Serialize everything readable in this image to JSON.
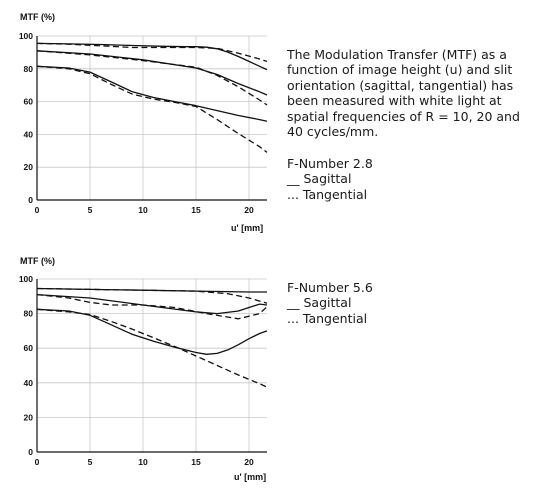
{
  "description": "The Modulation Transfer (MTF) as a function of image height (u) and slit orientation (sagittal, tangential) has been measured with white light at spatial frequencies of R = 10, 20 and 40 cycles/mm.",
  "chart_data": [
    {
      "type": "line",
      "title": "F-Number 2.8",
      "ylabel": "MTF (%)",
      "xlabel": "u' [mm]",
      "xlim": [
        0,
        21.7
      ],
      "ylim": [
        0,
        100
      ],
      "xticks": [
        0,
        5,
        10,
        15,
        20
      ],
      "yticks": [
        0,
        20,
        40,
        60,
        80,
        100
      ],
      "grid": true,
      "legend": [
        "__ Sagittal",
        "... Tangential"
      ],
      "series": [
        {
          "style": "solid",
          "x": [
            0,
            3,
            6,
            9,
            12,
            14,
            15,
            16,
            17,
            18,
            19,
            20,
            21,
            21.7
          ],
          "y": [
            95.5,
            95.2,
            94.8,
            94.2,
            93.7,
            93.5,
            93.5,
            93.2,
            92.2,
            90.2,
            87.5,
            84.5,
            81.5,
            79.5
          ]
        },
        {
          "style": "dashed",
          "x": [
            0,
            3,
            6,
            9,
            12,
            15,
            17,
            19,
            21,
            21.7
          ],
          "y": [
            95.5,
            95.0,
            94.0,
            93.0,
            93.0,
            93.0,
            92.5,
            89.5,
            86.0,
            84.5
          ]
        },
        {
          "style": "solid",
          "x": [
            0,
            5,
            10,
            15,
            17,
            19,
            21,
            21.7
          ],
          "y": [
            91,
            89,
            85.5,
            80.5,
            76.5,
            71,
            66,
            64
          ]
        },
        {
          "style": "dashed",
          "x": [
            0,
            5,
            10,
            15,
            17,
            19,
            21,
            21.7
          ],
          "y": [
            91,
            88.5,
            85,
            81,
            76,
            69,
            61,
            58
          ]
        },
        {
          "style": "solid",
          "x": [
            0,
            3,
            5,
            7,
            9,
            11,
            13,
            15,
            17,
            19,
            21,
            21.7
          ],
          "y": [
            81.5,
            80.5,
            78,
            72,
            66,
            62.5,
            60,
            57.5,
            54.5,
            51.5,
            49,
            48
          ]
        },
        {
          "style": "dashed",
          "x": [
            0,
            3,
            5,
            7,
            9,
            11,
            13,
            15,
            17,
            19,
            21,
            21.7
          ],
          "y": [
            81.5,
            80,
            77,
            70.5,
            64.5,
            61.5,
            59.5,
            57,
            49,
            40.5,
            32.5,
            29
          ]
        }
      ]
    },
    {
      "type": "line",
      "title": "F-Number 5.6",
      "ylabel": "MTF (%)",
      "xlabel": "u' [mm]",
      "xlim": [
        0,
        21.7
      ],
      "ylim": [
        0,
        100
      ],
      "xticks": [
        0,
        5,
        10,
        15,
        20
      ],
      "yticks": [
        0,
        20,
        40,
        60,
        80,
        100
      ],
      "grid": true,
      "legend": [
        "__ Sagittal",
        "... Tangential"
      ],
      "series": [
        {
          "style": "solid",
          "x": [
            0,
            5,
            10,
            15,
            20,
            21.7
          ],
          "y": [
            94.5,
            94,
            93.5,
            93,
            92.5,
            92.5
          ]
        },
        {
          "style": "dashed",
          "x": [
            0,
            5,
            10,
            15,
            18,
            20,
            21.7
          ],
          "y": [
            94.5,
            94,
            93.5,
            93,
            91.5,
            89,
            86
          ]
        },
        {
          "style": "solid",
          "x": [
            0,
            5,
            10,
            15,
            17,
            19,
            20,
            21,
            21.7
          ],
          "y": [
            91,
            89,
            85,
            81,
            80,
            81.5,
            83.5,
            85.5,
            85
          ]
        },
        {
          "style": "dashed",
          "x": [
            0,
            3,
            5,
            7,
            10,
            13,
            16,
            19,
            21,
            21.7
          ],
          "y": [
            91,
            89,
            86.5,
            85,
            85,
            83.5,
            80,
            77,
            80,
            84
          ]
        },
        {
          "style": "solid",
          "x": [
            0,
            3,
            5,
            7,
            9,
            11,
            13,
            15,
            16,
            17,
            18,
            19,
            20,
            21,
            21.7
          ],
          "y": [
            82.5,
            81.5,
            79,
            73.5,
            68,
            64,
            60.5,
            57.5,
            56.5,
            57,
            59,
            62,
            65.5,
            68.5,
            70
          ]
        },
        {
          "style": "dashed",
          "x": [
            0,
            3,
            5,
            7,
            9,
            11,
            13,
            15,
            17,
            19,
            21,
            21.7
          ],
          "y": [
            82.5,
            81,
            79.5,
            75.5,
            71,
            66,
            61,
            55.5,
            50,
            44.5,
            39.5,
            37.5
          ]
        }
      ]
    }
  ]
}
